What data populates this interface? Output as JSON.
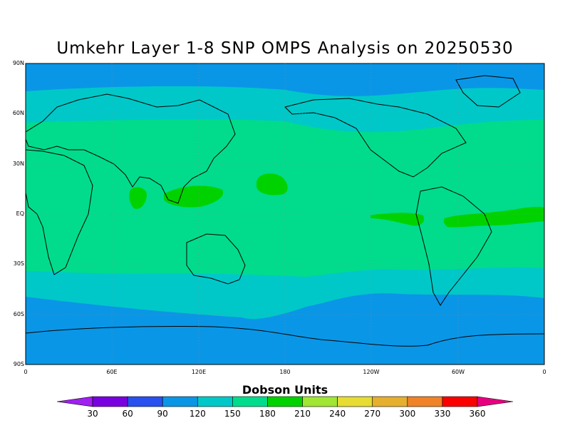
{
  "title": "Umkehr Layer 1-8 SNP OMPS Analysis on 20250530",
  "colorbar": {
    "title": "Dobson Units",
    "labels": [
      "30",
      "60",
      "90",
      "120",
      "150",
      "180",
      "210",
      "240",
      "270",
      "300",
      "330",
      "360"
    ],
    "colors": [
      "#a020f0",
      "#7800e0",
      "#2850f0",
      "#0a96e6",
      "#00c8c8",
      "#00dc8c",
      "#00d200",
      "#a0e632",
      "#e6dc32",
      "#e6af2d",
      "#f08228",
      "#fa0000",
      "#e6007f"
    ]
  },
  "axes": {
    "y_ticks": [
      "90N",
      "60N",
      "30N",
      "EQ",
      "30S",
      "60S",
      "90S"
    ],
    "x_ticks": [
      "0",
      "60E",
      "120E",
      "180",
      "120W",
      "60W",
      "0"
    ]
  },
  "chart_data": {
    "type": "heatmap",
    "title": "Umkehr Layer 1-8 SNP OMPS Analysis on 20250530",
    "units": "Dobson Units",
    "x_range": [
      0,
      360
    ],
    "y_range": [
      -90,
      90
    ],
    "levels": [
      30,
      60,
      90,
      120,
      150,
      180,
      210,
      240,
      270,
      300,
      330,
      360
    ],
    "bands_by_latitude": [
      {
        "from_lat": 90,
        "to_lat": 72,
        "value_range": "90-120"
      },
      {
        "from_lat": 72,
        "to_lat": 53,
        "value_range": "120-150"
      },
      {
        "from_lat": 53,
        "to_lat": -33,
        "value_range": "150-180"
      },
      {
        "from_lat": -33,
        "to_lat": -47,
        "value_range": "120-150"
      },
      {
        "from_lat": -47,
        "to_lat": -90,
        "value_range": "90-120"
      }
    ],
    "grid": true
  }
}
